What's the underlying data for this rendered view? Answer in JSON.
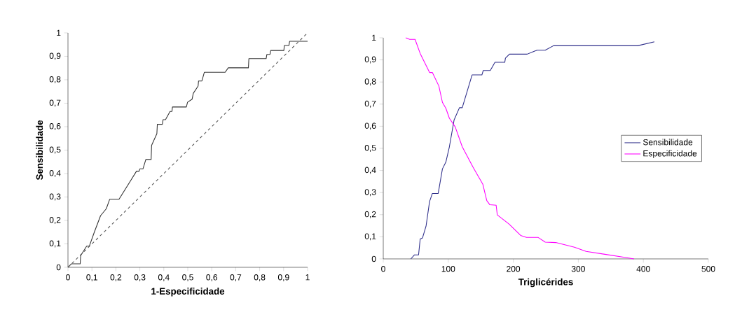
{
  "chart_data": [
    {
      "type": "line",
      "xlabel": "1-Especificidade",
      "ylabel": "Sensibilidade",
      "xlim": [
        0,
        1
      ],
      "ylim": [
        0,
        1
      ],
      "xticks": [
        0,
        {
          "value": 0.1,
          "label": "0,1"
        },
        {
          "value": 0.2,
          "label": "0,2"
        },
        {
          "value": 0.3,
          "label": "0,3"
        },
        {
          "value": 0.4,
          "label": "0,4"
        },
        {
          "value": 0.5,
          "label": "0,5"
        },
        {
          "value": 0.6,
          "label": "0,6"
        },
        {
          "value": 0.7,
          "label": "0,7"
        },
        {
          "value": 0.8,
          "label": "0,8"
        },
        {
          "value": 0.9,
          "label": "0,9"
        },
        1
      ],
      "yticks": [
        0,
        {
          "value": 0.1,
          "label": "0,1"
        },
        {
          "value": 0.2,
          "label": "0,2"
        },
        {
          "value": 0.3,
          "label": "0,3"
        },
        {
          "value": 0.4,
          "label": "0,4"
        },
        {
          "value": 0.5,
          "label": "0,5"
        },
        {
          "value": 0.6,
          "label": "0,6"
        },
        {
          "value": 0.7,
          "label": "0,7"
        },
        {
          "value": 0.8,
          "label": "0,8"
        },
        {
          "value": 0.9,
          "label": "0,9"
        },
        1
      ],
      "series": [
        {
          "color": "#333333",
          "line_style": "solid",
          "x": [
            0,
            0.015,
            0.051,
            0.053,
            0.078,
            0.089,
            0.11,
            0.136,
            0.16,
            0.174,
            0.213,
            0.286,
            0.297,
            0.3,
            0.313,
            0.325,
            0.347,
            0.349,
            0.371,
            0.373,
            0.394,
            0.397,
            0.407,
            0.426,
            0.434,
            0.436,
            0.494,
            0.499,
            0.518,
            0.523,
            0.543,
            0.545,
            0.559,
            0.569,
            0.656,
            0.669,
            0.753,
            0.755,
            0.827,
            0.83,
            0.843,
            0.846,
            0.901,
            0.903,
            0.922,
            0.925,
            1
          ],
          "values": [
            0,
            0.015,
            0.015,
            0.05,
            0.09,
            0.09,
            0.15,
            0.22,
            0.25,
            0.29,
            0.29,
            0.41,
            0.41,
            0.42,
            0.42,
            0.46,
            0.46,
            0.52,
            0.57,
            0.61,
            0.61,
            0.63,
            0.63,
            0.665,
            0.665,
            0.684,
            0.684,
            0.704,
            0.717,
            0.742,
            0.773,
            0.795,
            0.795,
            0.832,
            0.832,
            0.851,
            0.851,
            0.89,
            0.89,
            0.908,
            0.908,
            0.925,
            0.925,
            0.946,
            0.946,
            0.964,
            0.964
          ]
        },
        {
          "color": "#555555",
          "line_style": "dashed",
          "x": [
            0,
            1
          ],
          "values": [
            0,
            1
          ]
        }
      ]
    },
    {
      "type": "line",
      "xlabel": "Triglicérides",
      "xlim": [
        0,
        500
      ],
      "ylim": [
        0,
        1
      ],
      "legend": "right",
      "xticks": [
        0,
        100,
        200,
        300,
        400,
        500
      ],
      "yticks": [
        0,
        {
          "value": 0.1,
          "label": "0,1"
        },
        {
          "value": 0.2,
          "label": "0,2"
        },
        {
          "value": 0.3,
          "label": "0,3"
        },
        {
          "value": 0.4,
          "label": "0,4"
        },
        {
          "value": 0.5,
          "label": "0,5"
        },
        {
          "value": 0.6,
          "label": "0,6"
        },
        {
          "value": 0.7,
          "label": "0,7"
        },
        {
          "value": 0.8,
          "label": "0,8"
        },
        {
          "value": 0.9,
          "label": "0,9"
        },
        1
      ],
      "series": [
        {
          "name": "Sensibilidade",
          "color": "#2e2e8a",
          "x": [
            42.4,
            47.8,
            54.3,
            56.8,
            60.4,
            65.8,
            71.2,
            75.5,
            84.5,
            91,
            96.3,
            101.7,
            108.9,
            117.2,
            121.5,
            136.6,
            151.7,
            153.8,
            164.6,
            171.8,
            186.9,
            187.9,
            194.1,
            221.4,
            236.5,
            249.1,
            261.7,
            391.1,
            417
          ],
          "values": [
            0,
            0.018,
            0.018,
            0.09,
            0.095,
            0.148,
            0.259,
            0.296,
            0.296,
            0.407,
            0.438,
            0.507,
            0.628,
            0.684,
            0.684,
            0.832,
            0.832,
            0.852,
            0.852,
            0.889,
            0.889,
            0.908,
            0.926,
            0.926,
            0.944,
            0.944,
            0.964,
            0.964,
            0.982
          ]
        },
        {
          "name": "Especificidade",
          "color": "#ff00ff",
          "x": [
            34.5,
            40.6,
            48.9,
            56.8,
            71.2,
            75.5,
            85.5,
            91,
            96.3,
            101.7,
            110.7,
            121.5,
            137.7,
            144.9,
            153.1,
            159.2,
            163.9,
            173.6,
            175.4,
            193.4,
            211.3,
            220.3,
            238.3,
            249.1,
            265.3,
            294,
            312,
            340.8,
            371.3,
            385.7
          ],
          "values": [
            1.0,
            0.993,
            0.993,
            0.929,
            0.843,
            0.843,
            0.782,
            0.708,
            0.681,
            0.636,
            0.597,
            0.507,
            0.417,
            0.38,
            0.338,
            0.264,
            0.245,
            0.243,
            0.199,
            0.158,
            0.106,
            0.097,
            0.097,
            0.076,
            0.074,
            0.053,
            0.034,
            0.021,
            0.007,
            0
          ]
        }
      ]
    }
  ]
}
